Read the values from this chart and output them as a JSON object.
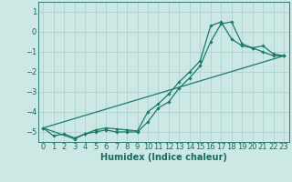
{
  "xlabel": "Humidex (Indice chaleur)",
  "background_color": "#cce8e5",
  "grid_color": "#aacfcc",
  "line_color": "#1a7a6e",
  "xlim": [
    -0.5,
    23.5
  ],
  "ylim": [
    -5.5,
    1.5
  ],
  "yticks": [
    1,
    0,
    -1,
    -2,
    -3,
    -4,
    -5
  ],
  "xticks": [
    0,
    1,
    2,
    3,
    4,
    5,
    6,
    7,
    8,
    9,
    10,
    11,
    12,
    13,
    14,
    15,
    16,
    17,
    18,
    19,
    20,
    21,
    22,
    23
  ],
  "line1_x": [
    0,
    1,
    2,
    3,
    4,
    5,
    6,
    7,
    8,
    9,
    10,
    11,
    12,
    13,
    14,
    15,
    16,
    17,
    18,
    19,
    20,
    21,
    22,
    23
  ],
  "line1_y": [
    -4.8,
    -5.2,
    -5.1,
    -5.3,
    -5.1,
    -5.0,
    -4.9,
    -5.0,
    -5.0,
    -5.0,
    -4.5,
    -3.8,
    -3.5,
    -2.8,
    -2.3,
    -1.7,
    -0.5,
    0.4,
    0.5,
    -0.6,
    -0.8,
    -0.7,
    -1.1,
    -1.2
  ],
  "line2_x": [
    0,
    3,
    4,
    5,
    6,
    7,
    8,
    9,
    10,
    11,
    12,
    13,
    14,
    15,
    16,
    17,
    18,
    19,
    20,
    21,
    22,
    23
  ],
  "line2_y": [
    -4.8,
    -5.35,
    -5.1,
    -4.9,
    -4.8,
    -4.85,
    -4.9,
    -4.95,
    -4.0,
    -3.6,
    -3.1,
    -2.5,
    -2.0,
    -1.45,
    0.3,
    0.5,
    -0.35,
    -0.7,
    -0.8,
    -1.0,
    -1.2,
    -1.2
  ],
  "line3_x": [
    0,
    23
  ],
  "line3_y": [
    -4.8,
    -1.2
  ],
  "tick_fontsize": 6,
  "xlabel_fontsize": 7,
  "tick_color": "#1a6a60",
  "spine_color": "#1a6a60"
}
